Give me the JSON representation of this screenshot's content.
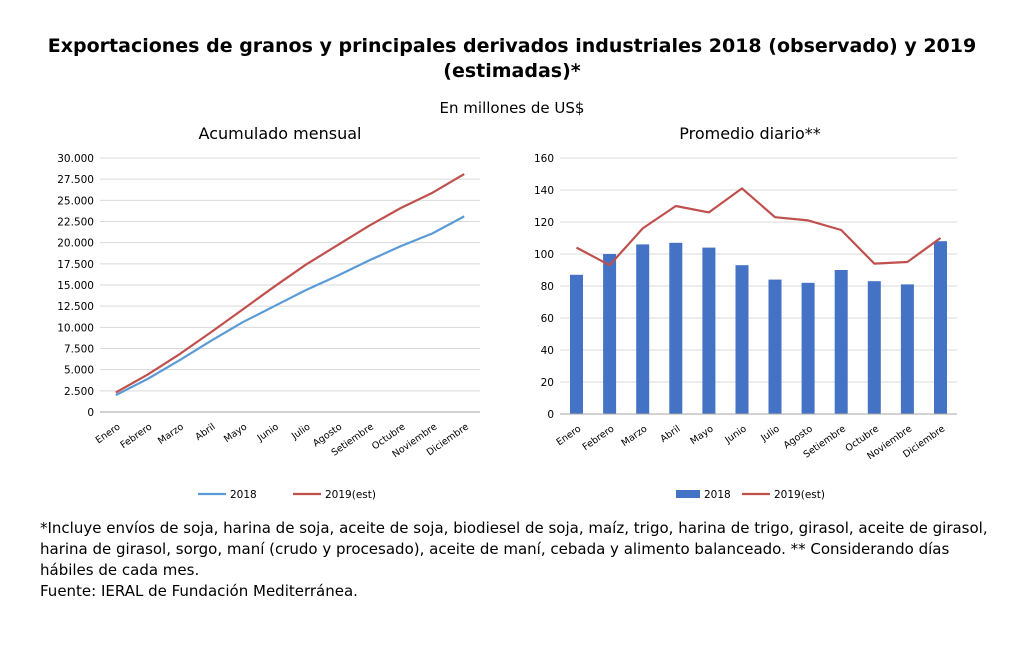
{
  "title_line1": "Exportaciones de granos y principales derivados industriales 2018 (observado) y 2019",
  "title_line2": "(estimadas)*",
  "units": "En millones de US$",
  "notes": [
    "*Incluye envíos de soja, harina de soja, aceite de soja, biodiesel de soja, maíz, trigo, harina de trigo, girasol, aceite de girasol, harina de girasol, sorgo, maní (crudo y procesado), aceite de maní, cebada y alimento balanceado. ** Considerando días hábiles de cada mes.",
    "Fuente: IERAL de Fundación Mediterránea."
  ],
  "colors": {
    "s2018": "#5b9bd5",
    "s2019": "#c0504d",
    "bar2018": "#4472c4",
    "grid": "#d9d9d9"
  },
  "chart_data": [
    {
      "type": "line",
      "title": "Acumulado mensual",
      "categories": [
        "Enero",
        "Febrero",
        "Marzo",
        "Abril",
        "Mayo",
        "Junio",
        "Julio",
        "Agosto",
        "Setiembre",
        "Octubre",
        "Noviembre",
        "Diciembre"
      ],
      "ylim": [
        0,
        30000
      ],
      "yticks": [
        "0",
        "2.500",
        "5.000",
        "7.500",
        "10.000",
        "12.500",
        "15.000",
        "17.500",
        "20.000",
        "22.500",
        "25.000",
        "27.500",
        "30.000"
      ],
      "series": [
        {
          "name": "2018",
          "values": [
            2000,
            3900,
            6100,
            8400,
            10600,
            12500,
            14400,
            16100,
            17900,
            19600,
            21100,
            23100
          ]
        },
        {
          "name": "2019(est)",
          "values": [
            2300,
            4400,
            6800,
            9400,
            12100,
            14800,
            17400,
            19700,
            22000,
            24100,
            25900,
            28100
          ]
        }
      ],
      "legend": "bottom"
    },
    {
      "type": "bar",
      "title": "Promedio diario**",
      "categories": [
        "Enero",
        "Febrero",
        "Marzo",
        "Abril",
        "Mayo",
        "Junio",
        "Julio",
        "Agosto",
        "Setiembre",
        "Octubre",
        "Noviembre",
        "Diciembre"
      ],
      "ylim": [
        0,
        160
      ],
      "yticks": [
        "0",
        "20",
        "40",
        "60",
        "80",
        "100",
        "120",
        "140",
        "160"
      ],
      "series": [
        {
          "name": "2018",
          "kind": "bar",
          "values": [
            87,
            100,
            106,
            107,
            104,
            93,
            84,
            82,
            90,
            83,
            81,
            108
          ]
        },
        {
          "name": "2019(est)",
          "kind": "line",
          "values": [
            104,
            93,
            116,
            130,
            126,
            141,
            123,
            121,
            115,
            94,
            95,
            110
          ]
        }
      ],
      "legend": "bottom"
    }
  ]
}
